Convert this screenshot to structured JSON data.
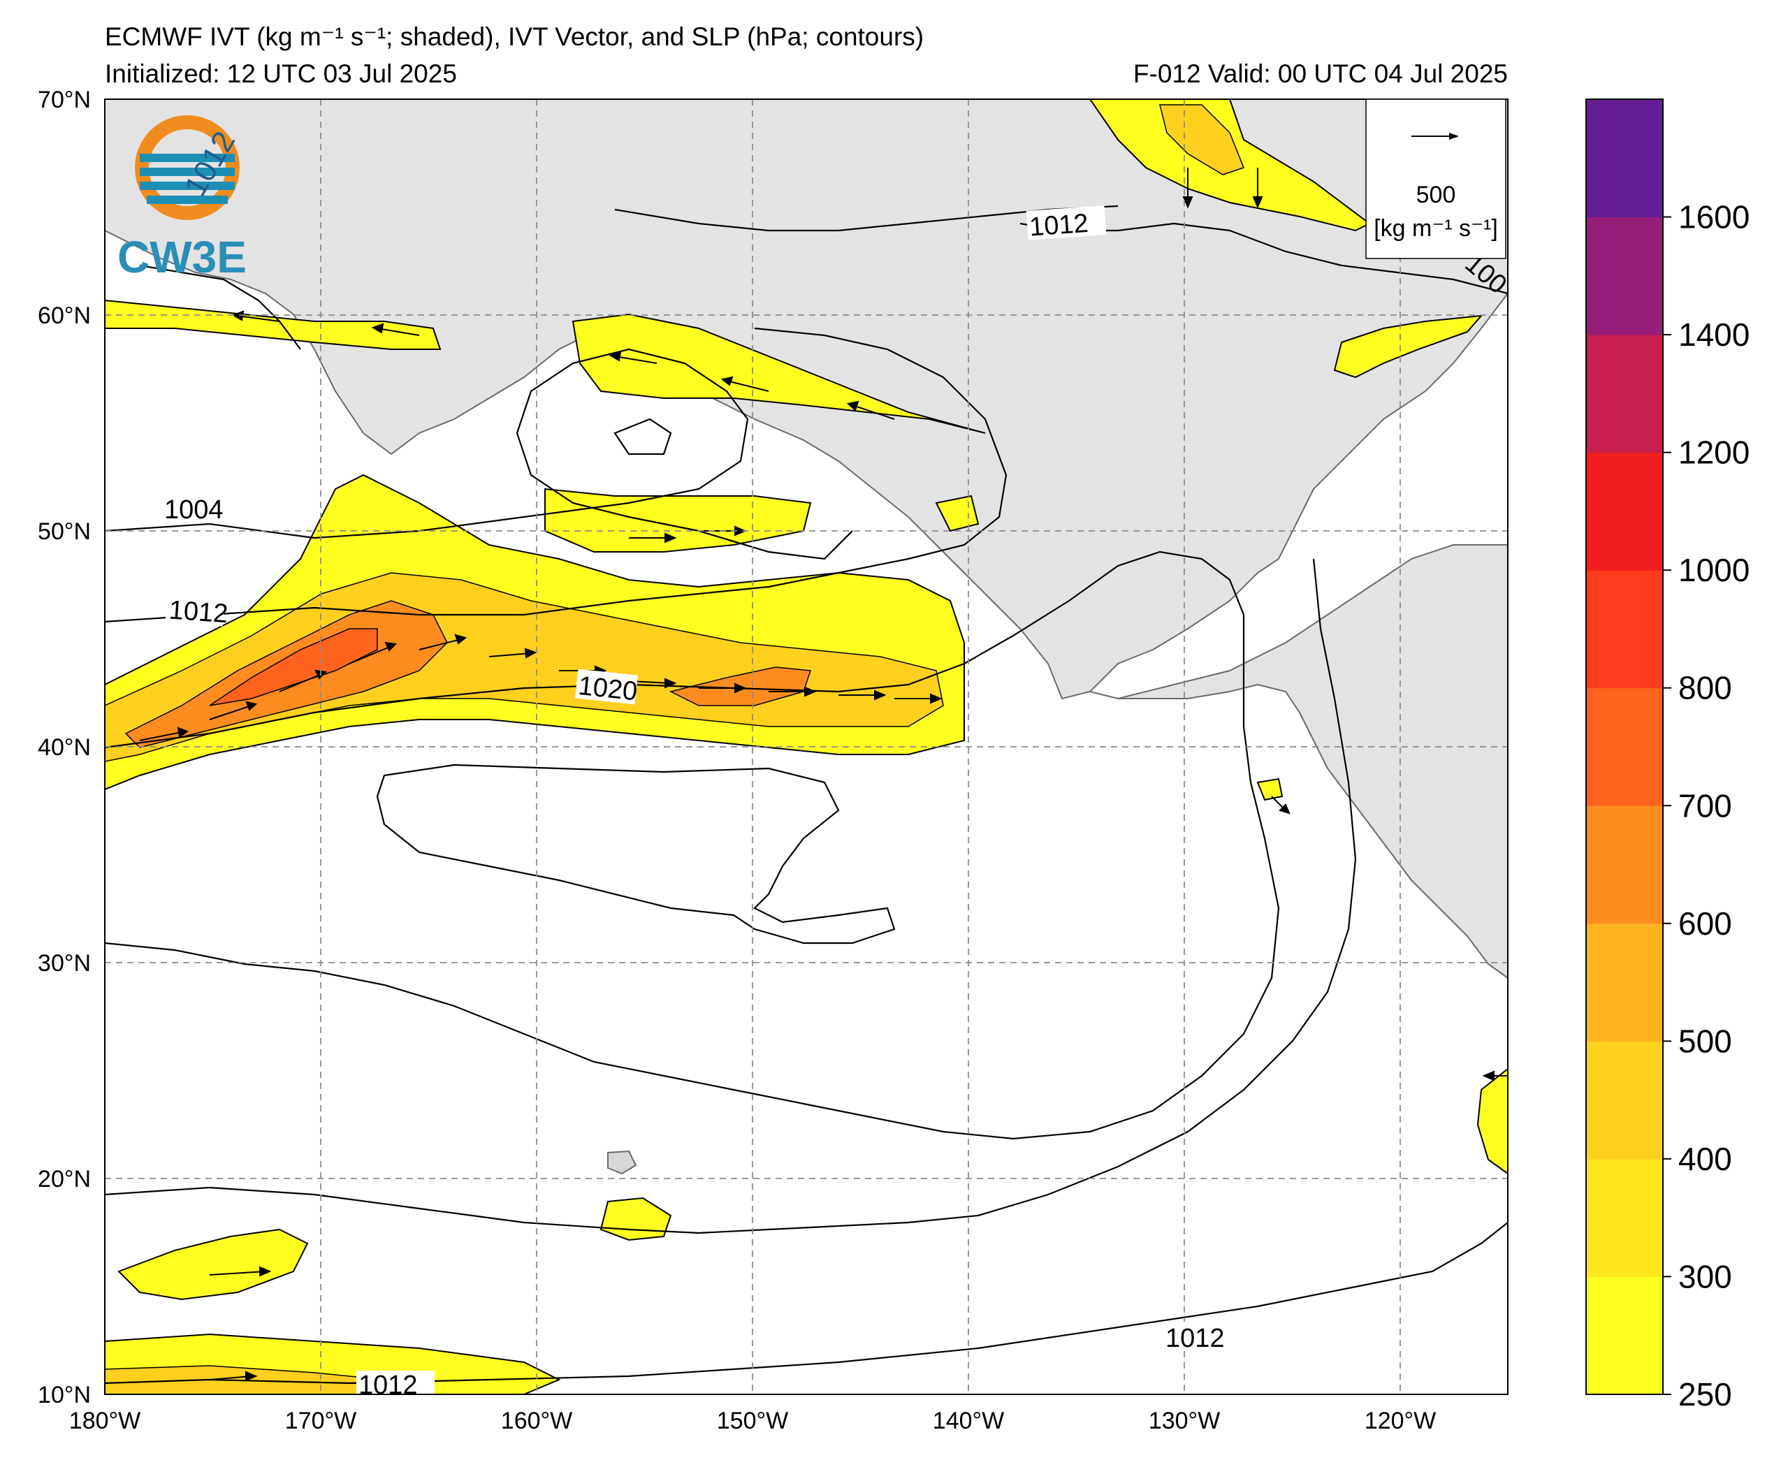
{
  "header": {
    "title": "ECMWF IVT (kg m⁻¹ s⁻¹; shaded), IVT Vector, and SLP (hPa; contours)",
    "initialized": "Initialized: 12 UTC 03 Jul 2025",
    "valid": "F-012  Valid: 00 UTC 04 Jul 2025"
  },
  "logo": {
    "text": "CW3E",
    "badge": "1012",
    "colors": {
      "ring": "#f08c1e",
      "wave": "#1e8fb4",
      "text": "#2a8fb7"
    }
  },
  "axes": {
    "lat_labels": [
      "70°N",
      "60°N",
      "50°N",
      "40°N",
      "30°N",
      "20°N",
      "10°N"
    ],
    "lon_labels": [
      "180°W",
      "170°W",
      "160°W",
      "150°W",
      "140°W",
      "130°W",
      "120°W"
    ],
    "lat_range": [
      10,
      70
    ],
    "lon_range": [
      -180,
      -115
    ]
  },
  "vector_key": {
    "value": "500",
    "units": "[kg m⁻¹ s⁻¹]"
  },
  "colorbar": {
    "ticks": [
      "250",
      "300",
      "400",
      "500",
      "600",
      "700",
      "800",
      "1000",
      "1200",
      "1400",
      "1600"
    ],
    "colors": [
      "#ffff20",
      "#ffe51e",
      "#ffd01e",
      "#ffb41e",
      "#ff8c1e",
      "#ff641e",
      "#ff3c1e",
      "#f01e1e",
      "#c81e50",
      "#961e78",
      "#641e96"
    ]
  },
  "contour_labels": [
    "1004",
    "1012",
    "1020",
    "1012",
    "1012",
    "1012",
    "100"
  ],
  "colors": {
    "land": "#e3e3e3",
    "coast": "#6a6a6a",
    "grid": "#8c8c8c",
    "contour": "#000000"
  }
}
